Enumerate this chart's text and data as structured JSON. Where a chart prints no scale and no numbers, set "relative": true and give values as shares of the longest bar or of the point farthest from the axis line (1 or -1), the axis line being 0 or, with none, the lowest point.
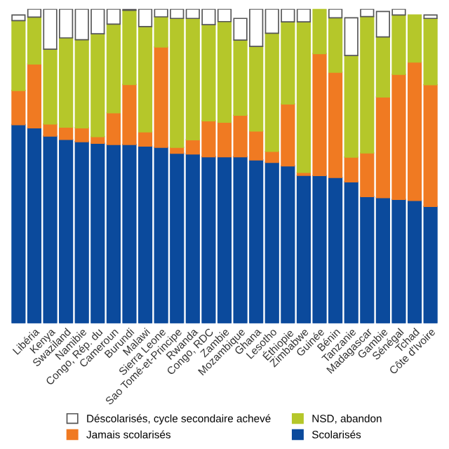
{
  "chart_data": {
    "type": "bar",
    "stacked": true,
    "relative": true,
    "legend": "bottom",
    "grid": false,
    "categories": [
      null,
      "Libéria",
      "Kenya",
      "Swaziland",
      "Namibie",
      "Congo, Rép. du",
      "Cameroun",
      "Burundi",
      "Malawi",
      "Sierra Leone",
      "Sao Tomé-et-Principe",
      "Rwanda",
      "Congo, RDC",
      "Zambie",
      "Mozambique",
      "Ghana",
      "Lesotho",
      "Éthiopie",
      "Zimbabwe",
      "Guinée",
      "Bénin",
      "Tanzanie",
      "Madagascar",
      "Gambie",
      "Sénégal",
      "Tchad",
      "Côte d'Ivoire"
    ],
    "series": [
      {
        "name": "Scolarisés",
        "color": "#0b4a9c",
        "values": [
          0.632,
          0.622,
          0.596,
          0.585,
          0.578,
          0.573,
          0.569,
          0.569,
          0.564,
          0.56,
          0.541,
          0.539,
          0.53,
          0.53,
          0.53,
          0.52,
          0.512,
          0.501,
          0.471,
          0.47,
          0.464,
          0.45,
          0.403,
          0.4,
          0.394,
          0.391,
          0.372
        ]
      },
      {
        "name": "Jamais scolarisés",
        "color": "#f07a22",
        "values": [
          0.109,
          0.203,
          0.038,
          0.039,
          0.044,
          0.021,
          0.101,
          0.191,
          0.045,
          0.319,
          0.019,
          0.045,
          0.114,
          0.11,
          0.132,
          0.092,
          0.035,
          0.197,
          0.009,
          0.388,
          0.335,
          0.079,
          0.139,
          0.32,
          0.398,
          0.44,
          0.387
        ]
      },
      {
        "name": "NSD, abandon",
        "color": "#b5c72a",
        "values": [
          0.222,
          0.149,
          0.238,
          0.284,
          0.28,
          0.327,
          0.282,
          0.236,
          0.335,
          0.096,
          0.41,
          0.386,
          0.306,
          0.32,
          0.239,
          0.269,
          0.376,
          0.261,
          0.479,
          0.142,
          0.173,
          0.323,
          0.434,
          0.191,
          0.189,
          0.15,
          0.211
        ]
      },
      {
        "name": "Déscolarisés, cycle secondaire achevé",
        "color": "#ffffff",
        "values": [
          0.018,
          0.026,
          0.128,
          0.092,
          0.098,
          0.079,
          0.048,
          0.004,
          0.056,
          0.025,
          0.03,
          0.03,
          0.05,
          0.04,
          0.069,
          0.119,
          0.077,
          0.041,
          0.041,
          0.0,
          0.028,
          0.12,
          0.024,
          0.081,
          0.019,
          0.0,
          0.011
        ]
      }
    ]
  }
}
